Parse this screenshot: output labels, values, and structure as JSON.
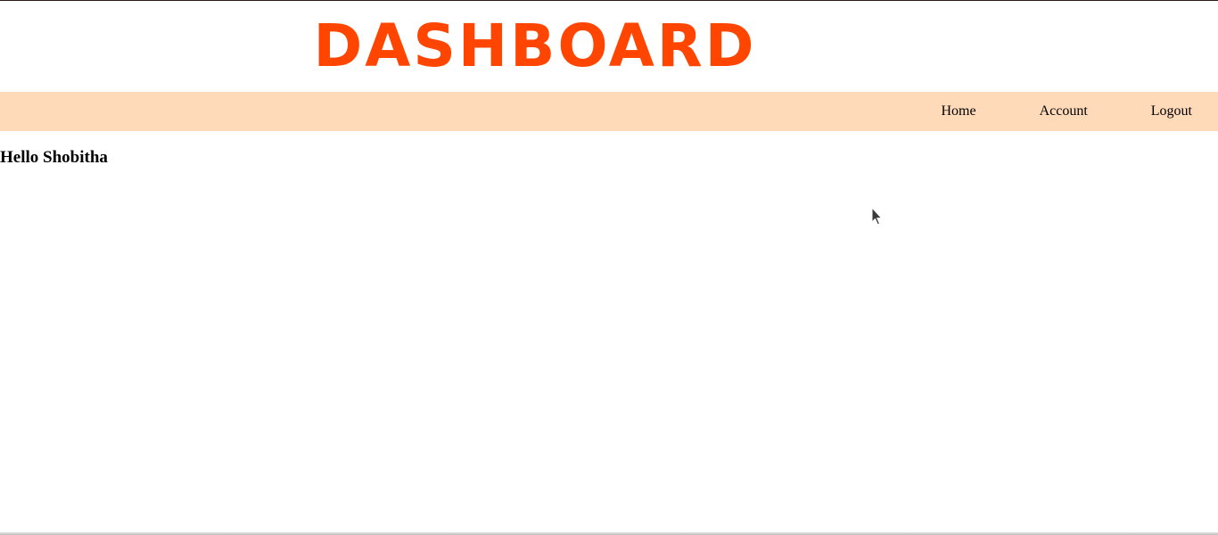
{
  "header": {
    "title": "DASHBOARD",
    "title_color": "#ff4500"
  },
  "navbar": {
    "background": "#ffdab9",
    "items": [
      {
        "label": "Home"
      },
      {
        "label": "Account"
      },
      {
        "label": "Logout"
      }
    ]
  },
  "main": {
    "greeting": "Hello Shobitha"
  },
  "icons": {
    "cursor": "mouse-pointer-icon"
  }
}
